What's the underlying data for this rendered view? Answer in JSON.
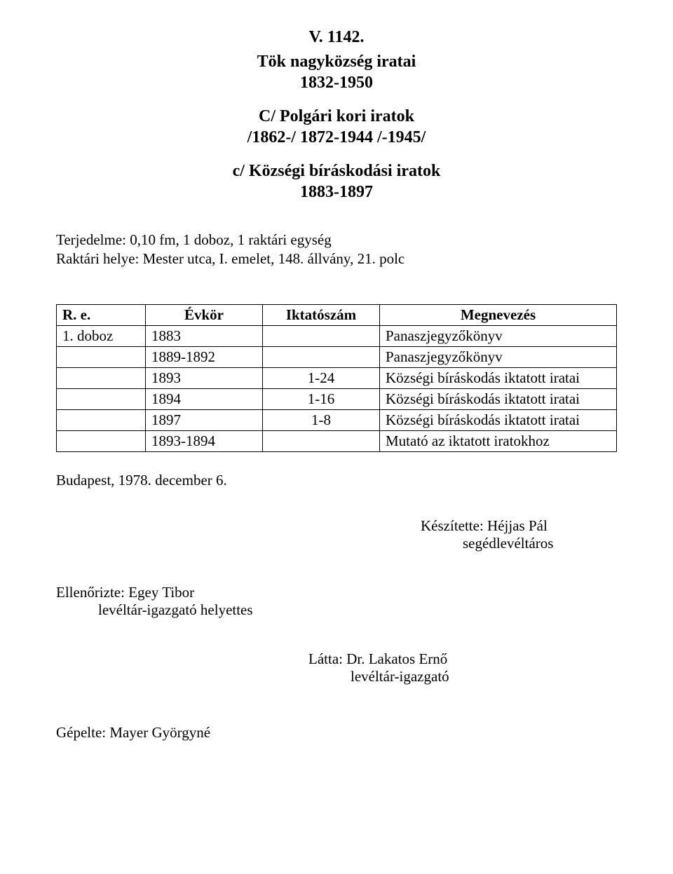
{
  "title": {
    "ref": "V. 1142.",
    "main_line1": "Tök nagyközség iratai",
    "main_line2": "1832-1950",
    "sub1_line1": "C/ Polgári kori iratok",
    "sub1_line2": "/1862-/ 1872-1944 /-1945/",
    "sub2_line1": "c/ Községi bíráskodási iratok",
    "sub2_line2": "1883-1897"
  },
  "meta": {
    "line1": "Terjedelme: 0,10 fm, 1 doboz, 1 raktári egység",
    "line2": "Raktári helye: Mester utca, I. emelet, 148. állvány, 21. polc"
  },
  "table": {
    "headers": {
      "re": "R. e.",
      "year": "Évkör",
      "ikt": "Iktatószám",
      "meg": "Megnevezés"
    },
    "rows": [
      {
        "re": "1. doboz",
        "year": "1883",
        "ikt": "",
        "meg": "Panaszjegyzőkönyv"
      },
      {
        "re": "",
        "year": "1889-1892",
        "ikt": "",
        "meg": "Panaszjegyzőkönyv"
      },
      {
        "re": "",
        "year": "1893",
        "ikt": "1-24",
        "meg": "Községi bíráskodás iktatott iratai"
      },
      {
        "re": "",
        "year": "1894",
        "ikt": "1-16",
        "meg": "Községi bíráskodás iktatott iratai"
      },
      {
        "re": "",
        "year": "1897",
        "ikt": "1-8",
        "meg": "Községi bíráskodás iktatott iratai"
      },
      {
        "re": "",
        "year": "1893-1894",
        "ikt": "",
        "meg": "Mutató az iktatott iratokhoz"
      }
    ]
  },
  "date_line": "Budapest, 1978. december 6.",
  "maker": {
    "line1": "Készítette: Héjjas Pál",
    "line2": "segédlevéltáros"
  },
  "reviewer": {
    "line1": "Ellenőrizte: Egey Tibor",
    "line2": "levéltár-igazgató helyettes"
  },
  "seen": {
    "line1": "Látta: Dr. Lakatos Ernő",
    "line2": "levéltár-igazgató"
  },
  "typed": "Gépelte: Mayer Györgyné"
}
